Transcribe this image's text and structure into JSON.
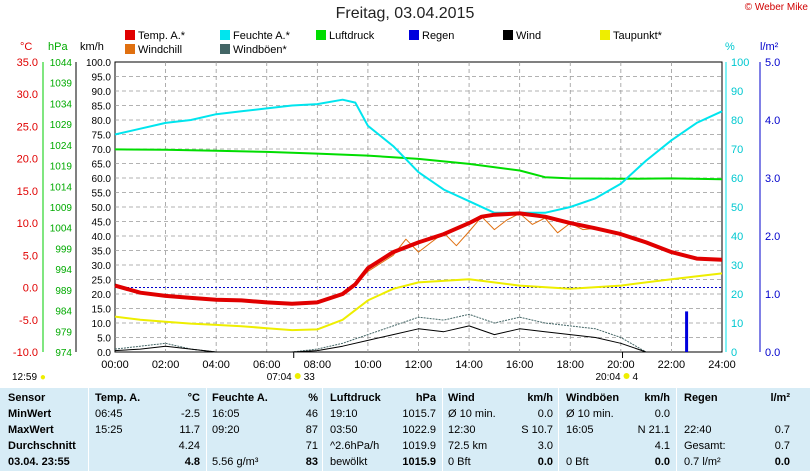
{
  "header": {
    "title": "Freitag, 03.04.2015",
    "copyright": "© Weber Mike"
  },
  "legend": [
    {
      "label": "Temp. A.*",
      "color": "#e00000"
    },
    {
      "label": "Feuchte A.*",
      "color": "#00e5ee"
    },
    {
      "label": "Luftdruck",
      "color": "#00dd00"
    },
    {
      "label": "Regen",
      "color": "#0000dd"
    },
    {
      "label": "Wind",
      "color": "#000000"
    },
    {
      "label": "Taupunkt*",
      "color": "#eeee00"
    },
    {
      "label": "Windchill",
      "color": "#e07010"
    },
    {
      "label": "Windböen*",
      "color": "#446666"
    }
  ],
  "axes": {
    "temp_unit": "°C",
    "hpa_unit": "hPa",
    "kmh_unit": "km/h",
    "pct_unit": "%",
    "rain_unit": "l/m²",
    "temp_ticks": [
      "35.0",
      "30.0",
      "25.0",
      "20.0",
      "15.0",
      "10.0",
      "5.0",
      "0.0",
      "-5.0",
      "-10.0"
    ],
    "hpa_ticks": [
      "1044",
      "1039",
      "1034",
      "1029",
      "1024",
      "1019",
      "1014",
      "1009",
      "1004",
      "999",
      "994",
      "989",
      "984",
      "979",
      "974"
    ],
    "kmh_ticks": [
      "100.0",
      "95.0",
      "90.0",
      "85.0",
      "80.0",
      "75.0",
      "70.0",
      "65.0",
      "60.0",
      "55.0",
      "50.0",
      "45.0",
      "40.0",
      "35.0",
      "30.0",
      "25.0",
      "20.0",
      "15.0",
      "10.0",
      "5.0",
      "0.0"
    ],
    "pct_ticks": [
      "100",
      "90",
      "80",
      "70",
      "60",
      "50",
      "40",
      "30",
      "20",
      "10",
      "0"
    ],
    "rain_ticks": [
      "5.0",
      "4.0",
      "3.0",
      "2.0",
      "1.0",
      "0.0"
    ],
    "x_ticks": [
      "00:00",
      "02:00",
      "04:00",
      "06:00",
      "08:00",
      "10:00",
      "12:00",
      "14:00",
      "16:00",
      "18:00",
      "20:00",
      "22:00",
      "24:00"
    ],
    "sunrise": "07:04",
    "sunrise_extra": "33",
    "sunset": "20:04",
    "sunset_extra": "4",
    "clock": "12:59"
  },
  "chart_data": {
    "type": "line",
    "x_unit": "hour",
    "xlim": [
      0,
      24
    ],
    "series": [
      {
        "name": "Temp. A.*",
        "axis": "temp",
        "ylim": [
          -10,
          35
        ],
        "x": [
          0,
          1,
          2,
          3,
          4,
          5,
          6,
          7,
          8,
          9,
          9.5,
          10,
          11,
          12,
          13,
          14,
          14.5,
          15,
          16,
          17,
          18,
          19,
          20,
          21,
          22,
          23,
          24
        ],
        "y": [
          0.3,
          -0.8,
          -1.3,
          -1.6,
          -1.9,
          -2.0,
          -2.3,
          -2.5,
          -2.3,
          -1,
          0.5,
          3,
          5.5,
          7,
          8.3,
          10,
          11,
          11.3,
          11.5,
          11,
          10,
          9.2,
          8.3,
          7,
          5.5,
          4.5,
          4.3
        ]
      },
      {
        "name": "Feuchte A.*",
        "axis": "pct",
        "ylim": [
          0,
          100
        ],
        "x": [
          0,
          1,
          2,
          3,
          4,
          5,
          6,
          7,
          8,
          9,
          9.5,
          10,
          11,
          12,
          13,
          14,
          15,
          16,
          17,
          18,
          19,
          20,
          21,
          22,
          23,
          24
        ],
        "y": [
          75,
          77,
          79,
          80,
          82,
          83,
          84,
          85,
          85.5,
          87,
          86,
          78,
          71,
          62,
          56,
          52,
          48,
          48,
          48,
          50,
          53,
          58,
          66,
          73,
          79,
          83
        ]
      },
      {
        "name": "Luftdruck",
        "axis": "hpa",
        "ylim": [
          974,
          1044
        ],
        "x": [
          0,
          2,
          4,
          6,
          8,
          10,
          12,
          14,
          16,
          17,
          18,
          20,
          22,
          24
        ],
        "y": [
          1022.9,
          1022.8,
          1022.6,
          1022.3,
          1021.9,
          1021.4,
          1020.6,
          1019.4,
          1017.8,
          1016.2,
          1015.9,
          1015.8,
          1015.9,
          1015.7
        ]
      },
      {
        "name": "Taupunkt*",
        "axis": "temp",
        "ylim": [
          -10,
          35
        ],
        "x": [
          0,
          1,
          2,
          3,
          4,
          5,
          6,
          7,
          8,
          9,
          10,
          11,
          12,
          14,
          16,
          18,
          20,
          22,
          24
        ],
        "y": [
          -4.5,
          -5,
          -5.3,
          -5.6,
          -5.8,
          -6,
          -6.3,
          -6.6,
          -6.5,
          -5,
          -2,
          -0.2,
          0.8,
          1.3,
          0.3,
          -0.2,
          0.3,
          1.3,
          2.2
        ]
      },
      {
        "name": "Windchill",
        "axis": "temp",
        "ylim": [
          -10,
          35
        ],
        "x": [
          9.5,
          10,
          11,
          11.5,
          12,
          12.5,
          13,
          13.5,
          14,
          14.5,
          15,
          15.5,
          16,
          16.5,
          17,
          17.5,
          18,
          18.5,
          19
        ],
        "y": [
          0.5,
          2.5,
          5,
          7.5,
          5.5,
          7,
          8.5,
          6.5,
          8.7,
          11,
          9,
          10.5,
          11.5,
          9.8,
          10.8,
          8.5,
          10,
          9,
          9.2
        ]
      },
      {
        "name": "Wind",
        "axis": "kmh",
        "ylim": [
          0,
          100
        ],
        "x": [
          0,
          1,
          2,
          3,
          4,
          5,
          6,
          7,
          8,
          9,
          10,
          11,
          12,
          13,
          14,
          15,
          16,
          17,
          18,
          19,
          20,
          21
        ],
        "y": [
          0.5,
          1,
          2,
          1,
          0,
          0,
          0,
          0,
          0.5,
          2,
          4,
          6,
          8,
          7,
          9,
          6,
          8,
          7,
          6,
          5,
          3,
          0
        ]
      },
      {
        "name": "Windböen*",
        "axis": "kmh",
        "ylim": [
          0,
          100
        ],
        "x": [
          0,
          1,
          2,
          3,
          4,
          5,
          6,
          7,
          8,
          9,
          10,
          11,
          12,
          13,
          14,
          15,
          16,
          17,
          18,
          19,
          20,
          21
        ],
        "y": [
          1,
          2,
          3,
          1,
          0,
          0,
          0,
          0,
          1,
          3,
          6,
          9,
          12,
          11,
          13,
          10,
          12,
          10,
          9,
          8,
          5,
          0
        ]
      },
      {
        "name": "Regen",
        "axis": "rain",
        "ylim": [
          0,
          5
        ],
        "x": [
          22.6
        ],
        "y": [
          0.7
        ],
        "type": "bar"
      }
    ]
  },
  "stats": {
    "headers": {
      "sensor": "Sensor",
      "temp": "Temp. A.",
      "temp_unit": "°C",
      "hum": "Feuchte A.",
      "hum_unit": "%",
      "press": "Luftdruck",
      "press_unit": "hPa",
      "wind": "Wind",
      "wind_unit": "km/h",
      "gust": "Windböen",
      "gust_unit": "km/h",
      "rain": "Regen",
      "rain_unit": "l/m²"
    },
    "rows": [
      {
        "label": "MinWert",
        "temp_time": "06:45",
        "temp_val": "-2.5",
        "hum_time": "16:05",
        "hum_val": "46",
        "press_time": "19:10",
        "press_val": "1015.7",
        "wind_left": "Ø 10 min.",
        "wind_val": "0.0",
        "gust_left": "Ø 10 min.",
        "gust_val": "0.0",
        "rain_left": "",
        "rain_val": ""
      },
      {
        "label": "MaxWert",
        "temp_time": "15:25",
        "temp_val": "11.7",
        "hum_time": "09:20",
        "hum_val": "87",
        "press_time": "03:50",
        "press_val": "1022.9",
        "wind_left": "12:30",
        "wind_val": "S 10.7",
        "gust_left": "16:05",
        "gust_val": "N 21.1",
        "rain_left": "22:40",
        "rain_val": "0.7"
      },
      {
        "label": "Durchschnitt",
        "temp_time": "",
        "temp_val": "4.24",
        "hum_time": "",
        "hum_val": "71",
        "press_time": "^2.6hPa/h",
        "press_val": "1019.9",
        "wind_left": "72.5 km",
        "wind_val": "3.0",
        "gust_left": "",
        "gust_val": "4.1",
        "rain_left": "Gesamt:",
        "rain_val": "0.7"
      },
      {
        "label": "03.04. 23:55",
        "temp_time": "",
        "temp_val": "4.8",
        "hum_time": "5.56 g/m³",
        "hum_val": "83",
        "press_time": "bewölkt",
        "press_val": "1015.9",
        "wind_left": "0 Bft",
        "wind_val": "0.0",
        "gust_left": "0 Bft",
        "gust_val": "0.0",
        "rain_left": "0.7 l/m²",
        "rain_val": "0.0"
      }
    ]
  }
}
